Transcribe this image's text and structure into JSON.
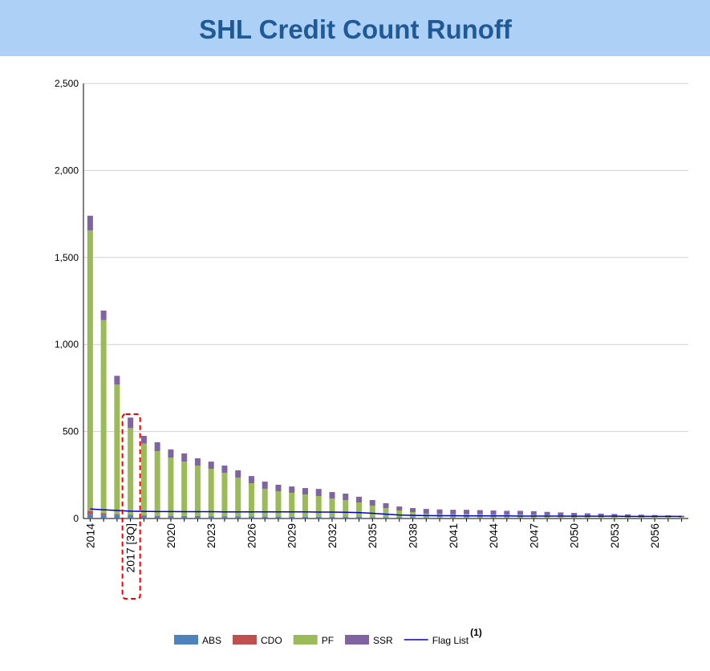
{
  "chart_data": {
    "type": "bar",
    "stacked": true,
    "title": "SHL Credit Count Runoff",
    "categories": [
      "2014",
      null,
      null,
      "2017 [3Q]",
      null,
      null,
      "2020",
      null,
      null,
      "2023",
      null,
      null,
      "2026",
      null,
      null,
      "2029",
      null,
      null,
      "2032",
      null,
      null,
      "2035",
      null,
      null,
      "2038",
      null,
      null,
      "2041",
      null,
      null,
      "2044",
      null,
      null,
      "2047",
      null,
      null,
      "2050",
      null,
      null,
      "2053",
      null,
      null,
      "2056",
      null,
      null
    ],
    "series": [
      {
        "name": "ABS",
        "color": "#4f81bd",
        "values": [
          25,
          22,
          20,
          18,
          16,
          15,
          15,
          14,
          14,
          13,
          13,
          12,
          12,
          11,
          11,
          10,
          10,
          10,
          9,
          9,
          9,
          8,
          8,
          7,
          7,
          6,
          6,
          6,
          6,
          5,
          5,
          5,
          5,
          5,
          4,
          4,
          4,
          4,
          4,
          4,
          3,
          3,
          3,
          3,
          3
        ]
      },
      {
        "name": "CDO",
        "color": "#c0504d",
        "values": [
          20,
          8,
          5,
          3,
          2,
          2,
          1,
          1,
          1,
          1,
          0,
          0,
          0,
          0,
          0,
          0,
          0,
          0,
          0,
          0,
          0,
          0,
          0,
          0,
          0,
          0,
          0,
          0,
          0,
          0,
          0,
          0,
          0,
          0,
          0,
          0,
          0,
          0,
          0,
          0,
          0,
          0,
          0,
          0,
          0
        ]
      },
      {
        "name": "PF",
        "color": "#9bbb59",
        "values": [
          1611,
          1110,
          745,
          499,
          412,
          370,
          334,
          312,
          289,
          272,
          250,
          223,
          191,
          160,
          146,
          138,
          128,
          119,
          106,
          97,
          83,
          66,
          52,
          39,
          30,
          22,
          20,
          19,
          19,
          19,
          18,
          17,
          17,
          16,
          15,
          14,
          12,
          11,
          10,
          9,
          9,
          8,
          7,
          6,
          5
        ]
      },
      {
        "name": "SSR",
        "color": "#8064a2",
        "values": [
          84,
          55,
          50,
          60,
          45,
          51,
          47,
          47,
          42,
          41,
          41,
          42,
          41,
          41,
          37,
          36,
          37,
          41,
          37,
          37,
          33,
          32,
          28,
          23,
          23,
          27,
          26,
          25,
          25,
          24,
          23,
          22,
          22,
          21,
          19,
          17,
          16,
          15,
          14,
          13,
          12,
          11,
          10,
          9,
          8
        ]
      },
      {
        "name": "Flag List",
        "type": "line",
        "color": "#0000cc",
        "values": [
          55,
          50,
          46,
          42,
          41,
          40,
          40,
          39,
          39,
          39,
          38,
          38,
          38,
          38,
          38,
          38,
          38,
          37,
          37,
          36,
          34,
          30,
          25,
          20,
          18,
          17,
          16,
          16,
          15,
          15,
          15,
          15,
          14,
          14,
          14,
          14,
          13,
          13,
          13,
          13,
          12,
          12,
          12,
          12,
          12
        ]
      }
    ],
    "legend_superscript": "(1)",
    "highlight_category": 3,
    "ylim": [
      0,
      2500
    ],
    "yticks": [
      0,
      500,
      {
        "value": 1000,
        "label": "1,000"
      },
      {
        "value": 1500,
        "label": "1,500"
      },
      {
        "value": 2000,
        "label": "2,000"
      },
      {
        "value": 2500,
        "label": "2,500"
      }
    ],
    "grid": true,
    "legend": "bottom"
  }
}
